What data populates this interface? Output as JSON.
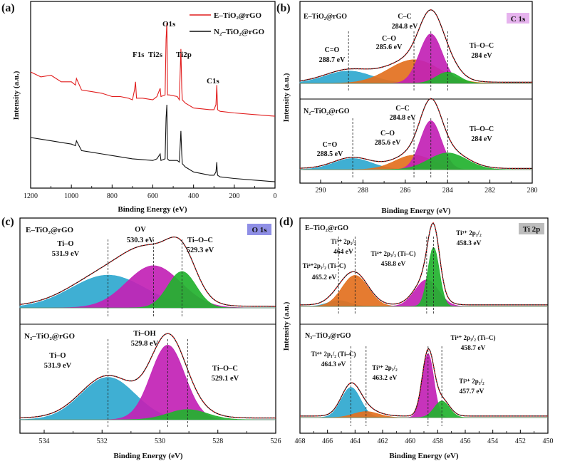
{
  "figure": {
    "panels": {
      "a": {
        "panel_label": "(a)",
        "xlabel": "Binding Energy (eV)",
        "ylabel": "Intensity (a.u.)",
        "xticks": [
          "1200",
          "1000",
          "800",
          "600",
          "400",
          "200",
          "0"
        ],
        "legend": [
          {
            "label": "E–TiO₂@rGO",
            "color": "#e11d1d"
          },
          {
            "label": "N₂–TiO₂@rGO",
            "color": "#111111"
          }
        ],
        "peak_labels": [
          {
            "text": "O1s"
          },
          {
            "text": "F1s"
          },
          {
            "text": "Ti2s"
          },
          {
            "text": "Ti2p"
          },
          {
            "text": "C1s"
          }
        ]
      },
      "b": {
        "panel_label": "(b)",
        "badge": "C 1s",
        "badge_color": "#e6b3ee",
        "xlabel": "Binding Energy (eV)",
        "ylabel": "Intensity (a.u.)",
        "xticks": [
          "290",
          "288",
          "286",
          "284",
          "282",
          "280"
        ],
        "top_title": "E–TiO₂@rGO",
        "bottom_title": "N₂–TiO₂@rGO",
        "top_labels": [
          {
            "name": "C=O",
            "value": "288.7 eV"
          },
          {
            "name": "C–O",
            "value": "285.6 eV"
          },
          {
            "name": "C–C",
            "value": "284.8 eV"
          },
          {
            "name": "Ti–O–C",
            "value": "284 eV"
          }
        ],
        "bottom_labels": [
          {
            "name": "C=O",
            "value": "288.5 eV"
          },
          {
            "name": "C–O",
            "value": "285.6 eV"
          },
          {
            "name": "C–C",
            "value": "284.8 eV"
          },
          {
            "name": "Ti–O–C",
            "value": "284 eV"
          }
        ]
      },
      "c": {
        "panel_label": "(c)",
        "badge": "O 1s",
        "badge_color": "#8f8fe6",
        "xlabel": "Binding Energy (eV)",
        "ylabel": "Intensity (a.u.)",
        "xticks": [
          "534",
          "532",
          "530",
          "528",
          "526"
        ],
        "top_title": "E–TiO₂@rGO",
        "bottom_title": "N₂–TiO₂@rGO",
        "top_labels": [
          {
            "name": "Ti–O",
            "value": "531.9 eV"
          },
          {
            "name": "OV",
            "value": "530.3 eV"
          },
          {
            "name": "Ti–O–C",
            "value": "529.3 eV"
          }
        ],
        "bottom_labels": [
          {
            "name": "Ti–O",
            "value": "531.9 eV"
          },
          {
            "name": "Ti–OH",
            "value": "529.8 eV"
          },
          {
            "name": "Ti–O–C",
            "value": "529.1 eV"
          }
        ]
      },
      "d": {
        "panel_label": "(d)",
        "badge": "Ti 2p",
        "badge_color": "#bdbdbd",
        "xlabel": "Binding Energy (eV)",
        "ylabel": "Intensity (a.u.)",
        "xticks": [
          "468",
          "466",
          "464",
          "462",
          "460",
          "458",
          "456",
          "454",
          "452",
          "450"
        ],
        "top_title": "E–TiO₂@rGO",
        "bottom_title": "N₂–TiO₂@rGO",
        "top_labels": [
          {
            "name": "Ti⁴⁺2p₁/₂ (Ti–C)",
            "value": "465.2 eV"
          },
          {
            "name": "Ti³⁺ 2p₁/₂",
            "value": "464 eV"
          },
          {
            "name": "Ti⁴⁺ 2p₃/₂ (Ti–C)",
            "value": "458.8 eV"
          },
          {
            "name": "Ti³⁺ 2p₃/₂",
            "value": "458.3 eV"
          }
        ],
        "bottom_labels": [
          {
            "name": "Ti⁴⁺ 2p₁/₂ (Ti–C)",
            "value": "464.3 eV"
          },
          {
            "name": "Ti³⁺ 2p₁/₂",
            "value": "463.2 eV"
          },
          {
            "name": "Ti⁴⁺ 2p₃/₂ (Ti–C)",
            "value": "458.7 eV"
          },
          {
            "name": "Ti³⁺ 2p₃/₂",
            "value": "457.7 eV"
          }
        ]
      }
    }
  },
  "chart_data": [
    {
      "type": "line",
      "panel": "a",
      "title": "",
      "xlabel": "Binding Energy (eV)",
      "ylabel": "Intensity (a.u.)",
      "xlim": [
        1200,
        0
      ],
      "series": [
        {
          "name": "E–TiO₂@rGO",
          "color": "#e11d1d",
          "x": [
            1200,
            1150,
            1100,
            1050,
            1000,
            980,
            975,
            950,
            900,
            850,
            800,
            760,
            720,
            700,
            690,
            685,
            680,
            650,
            600,
            580,
            564,
            560,
            540,
            535,
            531,
            528,
            520,
            480,
            470,
            462,
            458,
            455,
            440,
            400,
            320,
            300,
            290,
            286,
            284,
            282,
            270,
            200,
            100,
            0
          ],
          "y": [
            0.7,
            0.67,
            0.68,
            0.64,
            0.64,
            0.62,
            0.66,
            0.59,
            0.58,
            0.57,
            0.55,
            0.55,
            0.54,
            0.53,
            0.59,
            0.64,
            0.54,
            0.54,
            0.53,
            0.55,
            0.6,
            0.55,
            0.56,
            0.9,
            1.0,
            0.56,
            0.56,
            0.55,
            0.53,
            0.84,
            0.6,
            0.53,
            0.51,
            0.48,
            0.47,
            0.47,
            0.5,
            0.62,
            0.55,
            0.47,
            0.46,
            0.45,
            0.44,
            0.43
          ]
        },
        {
          "name": "N₂–TiO₂@rGO",
          "color": "#111111",
          "x": [
            1200,
            1150,
            1100,
            1050,
            1000,
            980,
            975,
            950,
            900,
            850,
            800,
            700,
            600,
            580,
            564,
            560,
            540,
            535,
            531,
            528,
            520,
            480,
            470,
            462,
            458,
            455,
            440,
            400,
            320,
            300,
            290,
            286,
            284,
            282,
            270,
            200,
            100,
            0
          ],
          "y": [
            0.3,
            0.29,
            0.28,
            0.27,
            0.26,
            0.25,
            0.28,
            0.22,
            0.21,
            0.2,
            0.19,
            0.17,
            0.16,
            0.17,
            0.2,
            0.16,
            0.17,
            0.42,
            0.5,
            0.17,
            0.16,
            0.16,
            0.15,
            0.34,
            0.2,
            0.14,
            0.12,
            0.09,
            0.07,
            0.07,
            0.09,
            0.15,
            0.1,
            0.07,
            0.06,
            0.05,
            0.04,
            0.03
          ]
        }
      ]
    },
    {
      "type": "line",
      "panel": "b",
      "title": "C 1s",
      "xlabel": "Binding Energy (eV)",
      "ylabel": "Intensity (a.u.)",
      "xlim": [
        291,
        280
      ],
      "series": [
        {
          "name": "E–TiO₂@rGO C=O",
          "color": "#2fa8cf",
          "peak": {
            "center": 288.7,
            "height": 0.22,
            "width": 1.1
          }
        },
        {
          "name": "E–TiO₂@rGO C–O",
          "color": "#e3701e",
          "peak": {
            "center": 285.6,
            "height": 0.42,
            "width": 1.2
          }
        },
        {
          "name": "E–TiO₂@rGO C–C",
          "color": "#c222b5",
          "peak": {
            "center": 284.8,
            "height": 0.88,
            "width": 0.55
          }
        },
        {
          "name": "E–TiO₂@rGO Ti–O–C",
          "color": "#22b22e",
          "peak": {
            "center": 284.0,
            "height": 0.2,
            "width": 0.55
          }
        },
        {
          "name": "N₂–TiO₂@rGO C=O",
          "color": "#2fa8cf",
          "peak": {
            "center": 288.5,
            "height": 0.2,
            "width": 0.9
          }
        },
        {
          "name": "N₂–TiO₂@rGO C–O",
          "color": "#e3701e",
          "peak": {
            "center": 285.6,
            "height": 0.26,
            "width": 0.9
          }
        },
        {
          "name": "N₂–TiO₂@rGO C–C",
          "color": "#c222b5",
          "peak": {
            "center": 284.8,
            "height": 0.88,
            "width": 0.5
          }
        },
        {
          "name": "N₂–TiO₂@rGO Ti–O–C",
          "color": "#22b22e",
          "peak": {
            "center": 284.0,
            "height": 0.3,
            "width": 0.9
          }
        }
      ]
    },
    {
      "type": "line",
      "panel": "c",
      "title": "O 1s",
      "xlabel": "Binding Energy (eV)",
      "ylabel": "Intensity (a.u.)",
      "xlim": [
        535,
        526
      ],
      "series": [
        {
          "name": "E–TiO₂@rGO Ti–O",
          "color": "#2fa8cf",
          "peak": {
            "center": 531.9,
            "height": 0.45,
            "width": 1.3
          }
        },
        {
          "name": "E–TiO₂@rGO OV",
          "color": "#c222b5",
          "peak": {
            "center": 530.3,
            "height": 0.58,
            "width": 0.95
          }
        },
        {
          "name": "E–TiO₂@rGO Ti–O–C",
          "color": "#22b22e",
          "peak": {
            "center": 529.3,
            "height": 0.5,
            "width": 0.5
          }
        },
        {
          "name": "N₂–TiO₂@rGO Ti–O",
          "color": "#2fa8cf",
          "peak": {
            "center": 531.9,
            "height": 0.5,
            "width": 0.95
          }
        },
        {
          "name": "N₂–TiO₂@rGO Ti–OH",
          "color": "#c222b5",
          "peak": {
            "center": 529.8,
            "height": 0.88,
            "width": 0.6
          }
        },
        {
          "name": "N₂–TiO₂@rGO Ti–O–C",
          "color": "#22b22e",
          "peak": {
            "center": 529.1,
            "height": 0.12,
            "width": 0.7
          }
        }
      ]
    },
    {
      "type": "line",
      "panel": "d",
      "title": "Ti 2p",
      "xlabel": "Binding Energy (eV)",
      "ylabel": "Intensity (a.u.)",
      "xlim": [
        468,
        450
      ],
      "series": [
        {
          "name": "E–TiO₂@rGO Ti4+ 2p1/2 (Ti–C)",
          "color": "#2fa8cf",
          "peak": {
            "center": 465.2,
            "height": 0.08,
            "width": 0.8
          }
        },
        {
          "name": "E–TiO₂@rGO Ti3+ 2p1/2",
          "color": "#e3701e",
          "peak": {
            "center": 464.0,
            "height": 0.42,
            "width": 0.95
          }
        },
        {
          "name": "E–TiO₂@rGO Ti4+ 2p3/2 (Ti–C)",
          "color": "#c222b5",
          "peak": {
            "center": 458.8,
            "height": 0.36,
            "width": 0.85
          }
        },
        {
          "name": "E–TiO₂@rGO Ti3+ 2p3/2",
          "color": "#22b22e",
          "peak": {
            "center": 458.3,
            "height": 0.8,
            "width": 0.42
          }
        },
        {
          "name": "N₂–TiO₂@rGO Ti4+ 2p1/2 (Ti–C)",
          "color": "#2fa8cf",
          "peak": {
            "center": 464.3,
            "height": 0.4,
            "width": 0.7
          }
        },
        {
          "name": "N₂–TiO₂@rGO Ti3+ 2p1/2",
          "color": "#e3701e",
          "peak": {
            "center": 463.2,
            "height": 0.08,
            "width": 0.9
          }
        },
        {
          "name": "N₂–TiO₂@rGO Ti4+ 2p3/2 (Ti–C)",
          "color": "#c222b5",
          "peak": {
            "center": 458.7,
            "height": 0.85,
            "width": 0.42
          }
        },
        {
          "name": "N₂–TiO₂@rGO Ti3+ 2p3/2",
          "color": "#22b22e",
          "peak": {
            "center": 457.7,
            "height": 0.22,
            "width": 0.55
          }
        }
      ]
    }
  ]
}
